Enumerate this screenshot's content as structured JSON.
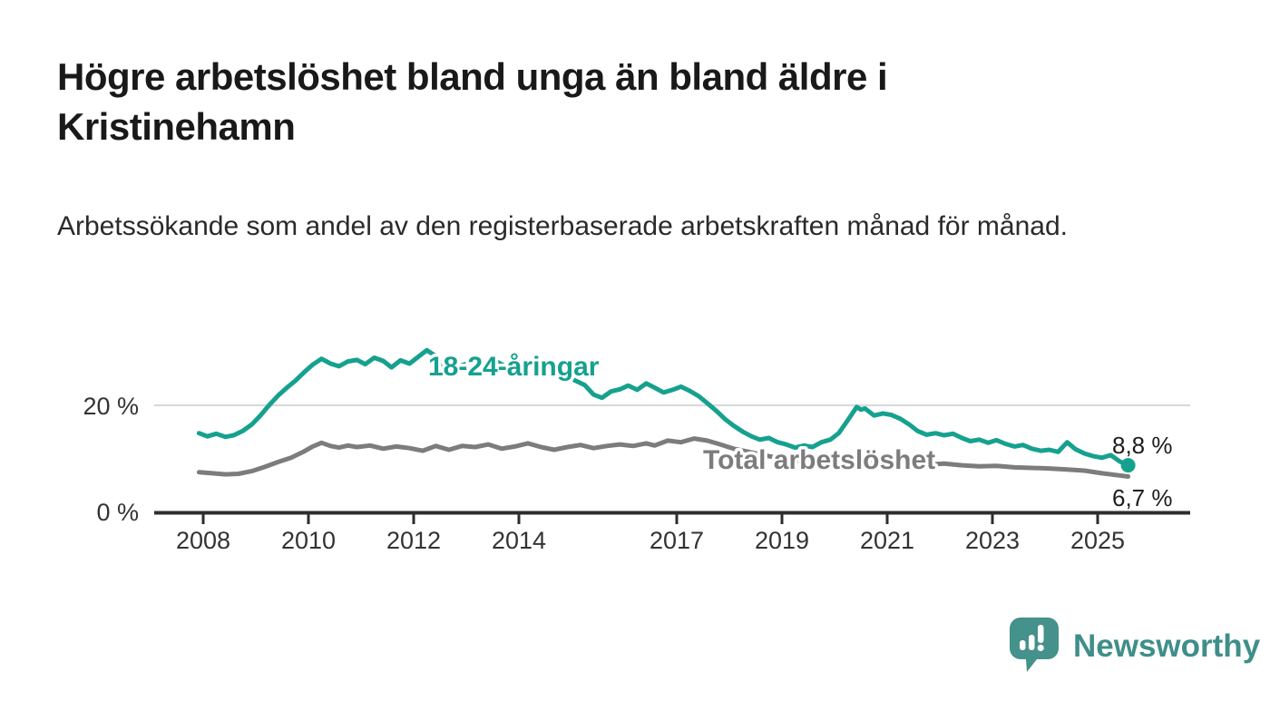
{
  "header": {
    "title": "Högre arbetslöshet bland unga än bland äldre i Kristinehamn",
    "subtitle": "Arbetssökande som andel av den registerbaserade arbetskraften månad för månad."
  },
  "chart_data": {
    "type": "line",
    "title": "Högre arbetslöshet bland unga än bland äldre i Kristinehamn",
    "xlabel": "",
    "ylabel": "",
    "unit": "%",
    "xlim": [
      2007.8,
      2026.0
    ],
    "ylim": [
      0,
      34
    ],
    "grid": "single-horizontal-gridline-at-20",
    "legend_position": "inline-labels-on-lines",
    "x_ticks": [
      2008,
      2010,
      2012,
      2014,
      2017,
      2019,
      2021,
      2023,
      2025
    ],
    "y_ticks": [
      {
        "value": 0,
        "label": "0 %"
      },
      {
        "value": 20,
        "label": "20 %"
      }
    ],
    "series": [
      {
        "name": "18-24-åringar",
        "color": "#16a18f",
        "end_value": 8.8,
        "end_label": "8,8 %",
        "points": [
          [
            2007.92,
            14.8
          ],
          [
            2008.08,
            14.2
          ],
          [
            2008.25,
            14.7
          ],
          [
            2008.42,
            14.1
          ],
          [
            2008.58,
            14.4
          ],
          [
            2008.75,
            15.2
          ],
          [
            2008.92,
            16.4
          ],
          [
            2009.08,
            18.0
          ],
          [
            2009.25,
            20.0
          ],
          [
            2009.42,
            21.8
          ],
          [
            2009.58,
            23.2
          ],
          [
            2009.75,
            24.6
          ],
          [
            2009.92,
            26.2
          ],
          [
            2010.08,
            27.6
          ],
          [
            2010.25,
            28.7
          ],
          [
            2010.42,
            27.8
          ],
          [
            2010.58,
            27.3
          ],
          [
            2010.75,
            28.2
          ],
          [
            2010.92,
            28.5
          ],
          [
            2011.08,
            27.7
          ],
          [
            2011.25,
            28.9
          ],
          [
            2011.42,
            28.3
          ],
          [
            2011.58,
            27.1
          ],
          [
            2011.75,
            28.4
          ],
          [
            2011.92,
            27.8
          ],
          [
            2012.08,
            29.0
          ],
          [
            2012.25,
            30.3
          ],
          [
            2012.42,
            29.2
          ],
          [
            2012.58,
            27.1
          ],
          [
            2012.75,
            26.4
          ],
          [
            2012.92,
            27.5
          ],
          [
            2013.08,
            28.0
          ],
          [
            2013.25,
            27.3
          ],
          [
            2013.42,
            27.9
          ],
          [
            2013.58,
            28.2
          ],
          [
            2013.75,
            27.2
          ],
          [
            2013.92,
            27.6
          ],
          [
            2014.08,
            27.9
          ],
          [
            2014.25,
            28.4
          ],
          [
            2014.42,
            27.7
          ],
          [
            2014.58,
            28.0
          ],
          [
            2014.75,
            26.6
          ],
          [
            2014.92,
            25.4
          ],
          [
            2015.08,
            24.6
          ],
          [
            2015.25,
            23.8
          ],
          [
            2015.42,
            22.0
          ],
          [
            2015.58,
            21.4
          ],
          [
            2015.75,
            22.6
          ],
          [
            2015.92,
            23.0
          ],
          [
            2016.08,
            23.7
          ],
          [
            2016.25,
            22.9
          ],
          [
            2016.42,
            24.1
          ],
          [
            2016.58,
            23.3
          ],
          [
            2016.75,
            22.4
          ],
          [
            2016.92,
            22.9
          ],
          [
            2017.08,
            23.5
          ],
          [
            2017.25,
            22.7
          ],
          [
            2017.42,
            21.7
          ],
          [
            2017.58,
            20.4
          ],
          [
            2017.75,
            19.0
          ],
          [
            2017.92,
            17.4
          ],
          [
            2018.08,
            16.2
          ],
          [
            2018.25,
            15.1
          ],
          [
            2018.42,
            14.2
          ],
          [
            2018.58,
            13.6
          ],
          [
            2018.75,
            13.9
          ],
          [
            2018.92,
            13.1
          ],
          [
            2019.08,
            12.7
          ],
          [
            2019.25,
            12.1
          ],
          [
            2019.42,
            12.5
          ],
          [
            2019.58,
            12.2
          ],
          [
            2019.75,
            13.1
          ],
          [
            2019.92,
            13.6
          ],
          [
            2020.08,
            14.8
          ],
          [
            2020.25,
            17.2
          ],
          [
            2020.42,
            19.7
          ],
          [
            2020.5,
            19.2
          ],
          [
            2020.58,
            19.4
          ],
          [
            2020.75,
            18.1
          ],
          [
            2020.92,
            18.5
          ],
          [
            2021.08,
            18.2
          ],
          [
            2021.25,
            17.5
          ],
          [
            2021.42,
            16.4
          ],
          [
            2021.58,
            15.2
          ],
          [
            2021.75,
            14.5
          ],
          [
            2021.92,
            14.8
          ],
          [
            2022.08,
            14.4
          ],
          [
            2022.25,
            14.7
          ],
          [
            2022.42,
            13.9
          ],
          [
            2022.58,
            13.3
          ],
          [
            2022.75,
            13.6
          ],
          [
            2022.92,
            13.0
          ],
          [
            2023.08,
            13.5
          ],
          [
            2023.25,
            12.8
          ],
          [
            2023.42,
            12.3
          ],
          [
            2023.58,
            12.6
          ],
          [
            2023.75,
            11.9
          ],
          [
            2023.92,
            11.5
          ],
          [
            2024.08,
            11.7
          ],
          [
            2024.25,
            11.3
          ],
          [
            2024.42,
            13.1
          ],
          [
            2024.58,
            11.8
          ],
          [
            2024.75,
            11.0
          ],
          [
            2024.92,
            10.5
          ],
          [
            2025.08,
            10.2
          ],
          [
            2025.25,
            10.7
          ],
          [
            2025.42,
            9.5
          ],
          [
            2025.58,
            8.8
          ]
        ]
      },
      {
        "name": "Total arbetslöshet",
        "color": "#7c7c7c",
        "end_value": 6.7,
        "end_label": "6,7 %",
        "points": [
          [
            2007.92,
            7.5
          ],
          [
            2008.17,
            7.3
          ],
          [
            2008.42,
            7.1
          ],
          [
            2008.67,
            7.2
          ],
          [
            2008.92,
            7.7
          ],
          [
            2009.17,
            8.5
          ],
          [
            2009.42,
            9.4
          ],
          [
            2009.67,
            10.2
          ],
          [
            2009.92,
            11.4
          ],
          [
            2010.08,
            12.3
          ],
          [
            2010.25,
            13.0
          ],
          [
            2010.42,
            12.4
          ],
          [
            2010.58,
            12.1
          ],
          [
            2010.75,
            12.5
          ],
          [
            2010.92,
            12.2
          ],
          [
            2011.17,
            12.5
          ],
          [
            2011.42,
            11.9
          ],
          [
            2011.67,
            12.3
          ],
          [
            2011.92,
            12.0
          ],
          [
            2012.17,
            11.5
          ],
          [
            2012.42,
            12.4
          ],
          [
            2012.67,
            11.7
          ],
          [
            2012.92,
            12.4
          ],
          [
            2013.17,
            12.2
          ],
          [
            2013.42,
            12.7
          ],
          [
            2013.67,
            11.9
          ],
          [
            2013.92,
            12.3
          ],
          [
            2014.17,
            12.9
          ],
          [
            2014.42,
            12.2
          ],
          [
            2014.67,
            11.7
          ],
          [
            2014.92,
            12.2
          ],
          [
            2015.17,
            12.6
          ],
          [
            2015.42,
            12.0
          ],
          [
            2015.67,
            12.4
          ],
          [
            2015.92,
            12.7
          ],
          [
            2016.17,
            12.4
          ],
          [
            2016.42,
            12.9
          ],
          [
            2016.58,
            12.5
          ],
          [
            2016.83,
            13.4
          ],
          [
            2017.08,
            13.1
          ],
          [
            2017.33,
            13.8
          ],
          [
            2017.58,
            13.4
          ],
          [
            2017.83,
            12.7
          ],
          [
            2018.08,
            11.9
          ],
          [
            2018.42,
            11.2
          ],
          [
            2018.75,
            10.5
          ],
          [
            2019.08,
            9.9
          ],
          [
            2019.42,
            9.5
          ],
          [
            2019.75,
            9.4
          ],
          [
            2020.08,
            9.7
          ],
          [
            2020.42,
            10.0
          ],
          [
            2020.75,
            9.6
          ],
          [
            2021.08,
            9.5
          ],
          [
            2021.42,
            9.2
          ],
          [
            2021.75,
            8.9
          ],
          [
            2022.08,
            9.1
          ],
          [
            2022.42,
            8.8
          ],
          [
            2022.75,
            8.6
          ],
          [
            2023.08,
            8.7
          ],
          [
            2023.42,
            8.4
          ],
          [
            2023.75,
            8.3
          ],
          [
            2024.08,
            8.2
          ],
          [
            2024.42,
            8.0
          ],
          [
            2024.75,
            7.8
          ],
          [
            2025.08,
            7.3
          ],
          [
            2025.33,
            7.0
          ],
          [
            2025.58,
            6.7
          ]
        ]
      }
    ]
  },
  "footer": {
    "brand": "Newsworthy",
    "logo_icon": "speech-bubble-bar-chart-icon",
    "brand_color": "#3f8e89"
  },
  "colors": {
    "accent_teal": "#16a18f",
    "series_gray": "#7c7c7c",
    "axis": "#333333",
    "gridline": "#d8d8d8",
    "title_text": "#191919"
  }
}
